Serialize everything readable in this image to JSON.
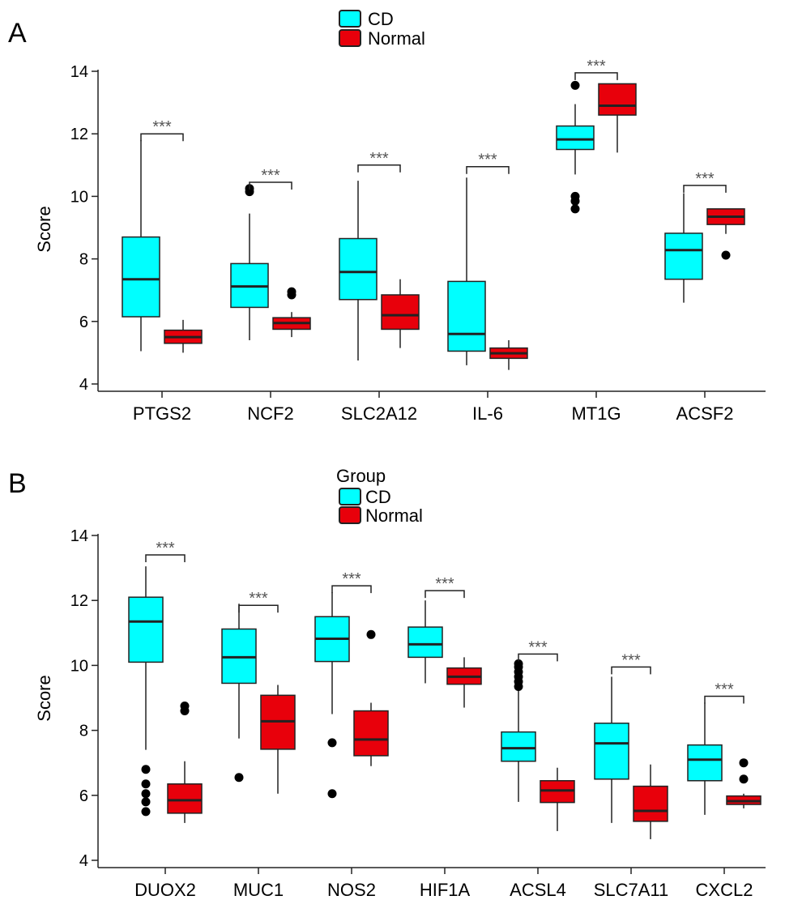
{
  "colors": {
    "CD": "#00ffff",
    "Normal": "#e8000b",
    "stroke": "#222222",
    "sig": "#666666"
  },
  "chart_data": [
    {
      "type": "box",
      "panel_label": "A",
      "legend": {
        "title": "",
        "entries": [
          "CD",
          "Normal"
        ]
      },
      "ylabel": "Score",
      "xlabel": "",
      "ylim": [
        4,
        14.4
      ],
      "yticks": [
        4,
        6,
        8,
        10,
        12,
        14
      ],
      "categories": [
        "PTGS2",
        "NCF2",
        "SLC2A12",
        "IL-6",
        "MT1G",
        "ACSF2"
      ],
      "series": [
        {
          "name": "CD",
          "boxes": [
            {
              "min": 5.05,
              "q1": 6.15,
              "median": 7.35,
              "q3": 8.7,
              "max": 11.8,
              "outliers": []
            },
            {
              "min": 5.4,
              "q1": 6.45,
              "median": 7.12,
              "q3": 7.85,
              "max": 9.45,
              "outliers": [
                10.15,
                10.25
              ]
            },
            {
              "min": 4.75,
              "q1": 6.7,
              "median": 7.58,
              "q3": 8.65,
              "max": 10.5,
              "outliers": []
            },
            {
              "min": 4.6,
              "q1": 5.05,
              "median": 5.6,
              "q3": 7.28,
              "max": 10.6,
              "outliers": []
            },
            {
              "min": 10.7,
              "q1": 11.5,
              "median": 11.82,
              "q3": 12.25,
              "max": 12.95,
              "outliers": [
                13.55,
                10.0,
                9.85,
                9.6
              ]
            },
            {
              "min": 6.6,
              "q1": 7.35,
              "median": 8.28,
              "q3": 8.82,
              "max": 10.1,
              "outliers": []
            }
          ]
        },
        {
          "name": "Normal",
          "boxes": [
            {
              "min": 5.0,
              "q1": 5.3,
              "median": 5.5,
              "q3": 5.72,
              "max": 6.05,
              "outliers": []
            },
            {
              "min": 5.5,
              "q1": 5.75,
              "median": 5.95,
              "q3": 6.12,
              "max": 6.3,
              "outliers": [
                6.85,
                6.95
              ]
            },
            {
              "min": 5.15,
              "q1": 5.75,
              "median": 6.2,
              "q3": 6.85,
              "max": 7.35,
              "outliers": []
            },
            {
              "min": 4.45,
              "q1": 4.82,
              "median": 4.98,
              "q3": 5.15,
              "max": 5.4,
              "outliers": []
            },
            {
              "min": 11.4,
              "q1": 12.6,
              "median": 12.9,
              "q3": 13.6,
              "max": 13.6,
              "outliers": []
            },
            {
              "min": 8.8,
              "q1": 9.1,
              "median": 9.35,
              "q3": 9.6,
              "max": 9.6,
              "outliers": [
                8.12
              ]
            }
          ]
        }
      ],
      "annotations": {
        "labels": [
          "***",
          "***",
          "***",
          "***",
          "***",
          "***"
        ],
        "levels": [
          12.0,
          10.45,
          11.0,
          10.95,
          13.95,
          10.35
        ]
      }
    },
    {
      "type": "box",
      "panel_label": "B",
      "legend": {
        "title": "Group",
        "entries": [
          "CD",
          "Normal"
        ]
      },
      "ylabel": "Score",
      "xlabel": "",
      "ylim": [
        4,
        14.2
      ],
      "yticks": [
        4,
        6,
        8,
        10,
        12,
        14
      ],
      "categories": [
        "DUOX2",
        "MUC1",
        "NOS2",
        "HIF1A",
        "ACSL4",
        "SLC7A11",
        "CXCL2"
      ],
      "series": [
        {
          "name": "CD",
          "boxes": [
            {
              "min": 7.4,
              "q1": 10.1,
              "median": 11.35,
              "q3": 12.1,
              "max": 13.05,
              "outliers": [
                6.8,
                6.35,
                6.05,
                5.8,
                5.5
              ]
            },
            {
              "min": 7.75,
              "q1": 9.45,
              "median": 10.25,
              "q3": 11.12,
              "max": 11.9,
              "outliers": [
                6.55
              ]
            },
            {
              "min": 8.5,
              "q1": 10.12,
              "median": 10.82,
              "q3": 11.5,
              "max": 12.25,
              "outliers": [
                7.62,
                6.05
              ]
            },
            {
              "min": 9.45,
              "q1": 10.25,
              "median": 10.65,
              "q3": 11.18,
              "max": 12.0,
              "outliers": []
            },
            {
              "min": 5.8,
              "q1": 7.05,
              "median": 7.45,
              "q3": 7.95,
              "max": 9.25,
              "outliers": [
                9.35,
                9.5,
                9.65,
                9.8,
                9.95,
                10.05
              ]
            },
            {
              "min": 5.15,
              "q1": 6.5,
              "median": 7.6,
              "q3": 8.22,
              "max": 9.65,
              "outliers": []
            },
            {
              "min": 5.4,
              "q1": 6.45,
              "median": 7.1,
              "q3": 7.55,
              "max": 8.85,
              "outliers": []
            }
          ]
        },
        {
          "name": "Normal",
          "boxes": [
            {
              "min": 5.15,
              "q1": 5.45,
              "median": 5.85,
              "q3": 6.35,
              "max": 7.05,
              "outliers": [
                8.75,
                8.6
              ]
            },
            {
              "min": 6.05,
              "q1": 7.42,
              "median": 8.28,
              "q3": 9.08,
              "max": 9.4,
              "outliers": []
            },
            {
              "min": 6.9,
              "q1": 7.22,
              "median": 7.72,
              "q3": 8.6,
              "max": 8.85,
              "outliers": [
                10.95
              ]
            },
            {
              "min": 8.7,
              "q1": 9.42,
              "median": 9.65,
              "q3": 9.92,
              "max": 10.25,
              "outliers": []
            },
            {
              "min": 4.9,
              "q1": 5.78,
              "median": 6.15,
              "q3": 6.45,
              "max": 6.85,
              "outliers": []
            },
            {
              "min": 4.65,
              "q1": 5.2,
              "median": 5.52,
              "q3": 6.28,
              "max": 6.95,
              "outliers": []
            },
            {
              "min": 5.6,
              "q1": 5.72,
              "median": 5.82,
              "q3": 5.98,
              "max": 6.05,
              "outliers": [
                7.0,
                6.5
              ]
            }
          ]
        }
      ],
      "annotations": {
        "labels": [
          "***",
          "***",
          "***",
          "***",
          "***",
          "***",
          "***"
        ],
        "levels": [
          13.4,
          11.85,
          12.45,
          12.3,
          10.35,
          9.95,
          9.05
        ]
      }
    }
  ]
}
